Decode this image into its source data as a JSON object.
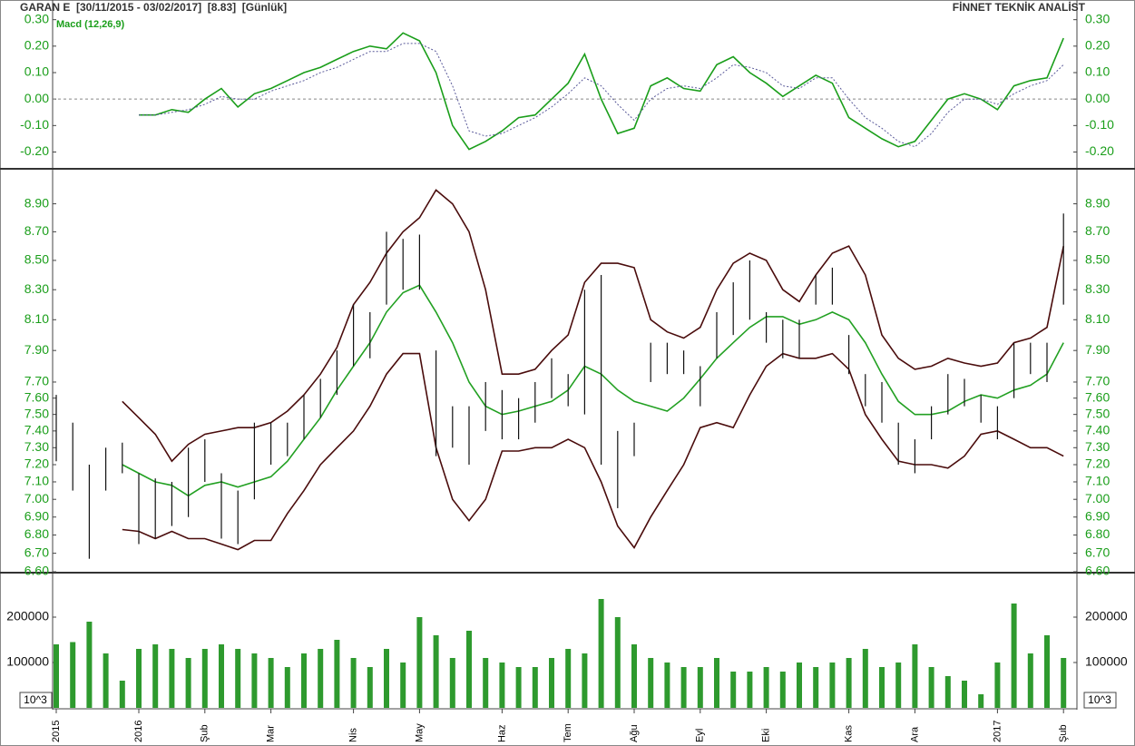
{
  "header": {
    "title": "GARAN E  [30/11/2015 - 03/02/2017]  [8.83]  [Günlük]",
    "brand": "FİNNET TEKNİK ANALİST"
  },
  "chart_data": [
    {
      "type": "line",
      "legend": "Macd (12,26,9)",
      "ylim": [
        -0.26,
        0.34
      ],
      "tick_color": "#1a9e1a",
      "yticks": [
        {
          "value": 0.3,
          "label": "0.30"
        },
        {
          "value": 0.2,
          "label": "0.20"
        },
        {
          "value": 0.1,
          "label": "0.10"
        },
        {
          "value": 0,
          "label": "0.00"
        },
        {
          "value": -0.1,
          "label": "-0.10"
        },
        {
          "value": -0.2,
          "label": "-0.20"
        }
      ],
      "series": [
        {
          "color": "#1a9e1a",
          "dash": false,
          "values": [
            null,
            null,
            null,
            null,
            null,
            -0.06,
            -0.06,
            -0.04,
            -0.05,
            0.0,
            0.04,
            -0.03,
            0.02,
            0.04,
            0.07,
            0.1,
            0.12,
            0.15,
            0.18,
            0.2,
            0.19,
            0.25,
            0.22,
            0.1,
            -0.1,
            -0.19,
            -0.16,
            -0.12,
            -0.07,
            -0.06,
            0.0,
            0.06,
            0.17,
            0.0,
            -0.13,
            -0.11,
            0.05,
            0.08,
            0.04,
            0.03,
            0.13,
            0.16,
            0.1,
            0.06,
            0.01,
            0.05,
            0.09,
            0.06,
            -0.07,
            -0.11,
            -0.15,
            -0.18,
            -0.16,
            -0.08,
            0.0,
            0.02,
            0.0,
            -0.04,
            0.05,
            0.07,
            0.08,
            0.23
          ]
        },
        {
          "color": "#5a5a9a",
          "dash": true,
          "values": [
            null,
            null,
            null,
            null,
            null,
            -0.06,
            -0.06,
            -0.05,
            -0.04,
            -0.02,
            0.01,
            0.0,
            0.0,
            0.03,
            0.05,
            0.07,
            0.1,
            0.12,
            0.15,
            0.18,
            0.18,
            0.21,
            0.21,
            0.18,
            0.05,
            -0.12,
            -0.14,
            -0.13,
            -0.1,
            -0.07,
            -0.03,
            0.02,
            0.08,
            0.05,
            -0.02,
            -0.08,
            0.0,
            0.04,
            0.05,
            0.04,
            0.08,
            0.13,
            0.12,
            0.1,
            0.05,
            0.04,
            0.08,
            0.08,
            0.0,
            -0.07,
            -0.11,
            -0.16,
            -0.18,
            -0.13,
            -0.05,
            0.0,
            0.0,
            -0.02,
            0.02,
            0.05,
            0.07,
            0.13
          ]
        }
      ]
    },
    {
      "type": "price",
      "log": true,
      "ylim": [
        6.6,
        9.15
      ],
      "tick_color": "#1a9e1a",
      "bar_color": "#111111",
      "yticks": [
        {
          "value": 8.9,
          "label": "8.90"
        },
        {
          "value": 8.7,
          "label": "8.70"
        },
        {
          "value": 8.5,
          "label": "8.50"
        },
        {
          "value": 8.3,
          "label": "8.30"
        },
        {
          "value": 8.1,
          "label": "8.10"
        },
        {
          "value": 7.9,
          "label": "7.90"
        },
        {
          "value": 7.7,
          "label": "7.70"
        },
        {
          "value": 7.6,
          "label": "7.60"
        },
        {
          "value": 7.5,
          "label": "7.50"
        },
        {
          "value": 7.4,
          "label": "7.40"
        },
        {
          "value": 7.3,
          "label": "7.30"
        },
        {
          "value": 7.2,
          "label": "7.20"
        },
        {
          "value": 7.1,
          "label": "7.10"
        },
        {
          "value": 7.0,
          "label": "7.00"
        },
        {
          "value": 6.9,
          "label": "6.90"
        },
        {
          "value": 6.8,
          "label": "6.80"
        },
        {
          "value": 6.7,
          "label": "6.70"
        },
        {
          "value": 6.6,
          "label": "6.60"
        }
      ],
      "high": [
        7.62,
        7.45,
        7.2,
        7.3,
        7.33,
        7.15,
        7.12,
        7.1,
        7.3,
        7.35,
        7.15,
        7.05,
        7.45,
        7.45,
        7.45,
        7.62,
        7.72,
        7.9,
        8.2,
        8.15,
        8.7,
        8.65,
        8.68,
        7.9,
        7.55,
        7.55,
        7.7,
        7.65,
        7.6,
        7.7,
        7.85,
        7.75,
        8.3,
        8.4,
        7.4,
        7.45,
        7.95,
        7.95,
        7.9,
        7.8,
        8.15,
        8.35,
        8.5,
        8.15,
        8.1,
        8.1,
        8.4,
        8.45,
        8.0,
        7.75,
        7.7,
        7.45,
        7.35,
        7.55,
        7.75,
        7.72,
        7.62,
        7.55,
        7.95,
        7.95,
        7.95,
        8.83
      ],
      "low": [
        7.22,
        7.05,
        6.67,
        7.05,
        7.15,
        6.75,
        6.78,
        6.85,
        6.9,
        7.1,
        6.78,
        6.75,
        7.0,
        7.2,
        7.25,
        7.35,
        7.48,
        7.62,
        7.8,
        7.85,
        8.2,
        8.3,
        8.3,
        7.25,
        7.3,
        7.2,
        7.4,
        7.35,
        7.35,
        7.45,
        7.6,
        7.55,
        7.5,
        7.2,
        6.95,
        7.25,
        7.7,
        7.75,
        7.75,
        7.55,
        7.85,
        8.0,
        8.1,
        7.95,
        7.85,
        7.85,
        8.2,
        8.2,
        7.75,
        7.55,
        7.45,
        7.2,
        7.15,
        7.35,
        7.5,
        7.55,
        7.45,
        7.35,
        7.6,
        7.75,
        7.7,
        8.2
      ],
      "series": [
        {
          "color": "#4a0c0c",
          "values": [
            null,
            null,
            null,
            null,
            7.58,
            7.48,
            7.38,
            7.22,
            7.32,
            7.38,
            7.4,
            7.42,
            7.42,
            7.45,
            7.52,
            7.62,
            7.75,
            7.92,
            8.2,
            8.35,
            8.55,
            8.7,
            8.8,
            9.0,
            8.9,
            8.7,
            8.3,
            7.75,
            7.75,
            7.78,
            7.9,
            8.0,
            8.35,
            8.48,
            8.48,
            8.45,
            8.1,
            8.02,
            7.98,
            8.05,
            8.3,
            8.48,
            8.55,
            8.5,
            8.3,
            8.22,
            8.4,
            8.55,
            8.6,
            8.4,
            8.0,
            7.85,
            7.78,
            7.8,
            7.85,
            7.82,
            7.8,
            7.82,
            7.95,
            7.98,
            8.05,
            8.6
          ]
        },
        {
          "color": "#22a022",
          "values": [
            null,
            null,
            null,
            null,
            7.2,
            7.15,
            7.1,
            7.08,
            7.02,
            7.08,
            7.1,
            7.07,
            7.1,
            7.13,
            7.22,
            7.35,
            7.48,
            7.65,
            7.8,
            7.95,
            8.15,
            8.28,
            8.33,
            8.15,
            7.95,
            7.7,
            7.55,
            7.5,
            7.52,
            7.55,
            7.58,
            7.65,
            7.8,
            7.75,
            7.65,
            7.58,
            7.55,
            7.52,
            7.6,
            7.72,
            7.85,
            7.95,
            8.05,
            8.12,
            8.12,
            8.07,
            8.1,
            8.15,
            8.1,
            7.95,
            7.75,
            7.58,
            7.5,
            7.5,
            7.52,
            7.58,
            7.62,
            7.6,
            7.65,
            7.68,
            7.75,
            7.95
          ]
        },
        {
          "color": "#4a0c0c",
          "values": [
            null,
            null,
            null,
            null,
            6.83,
            6.82,
            6.78,
            6.82,
            6.78,
            6.78,
            6.75,
            6.72,
            6.77,
            6.77,
            6.92,
            7.05,
            7.2,
            7.3,
            7.4,
            7.55,
            7.75,
            7.88,
            7.88,
            7.3,
            7.0,
            6.88,
            7.0,
            7.28,
            7.28,
            7.3,
            7.3,
            7.35,
            7.3,
            7.1,
            6.85,
            6.73,
            6.9,
            7.05,
            7.2,
            7.42,
            7.45,
            7.42,
            7.62,
            7.8,
            7.88,
            7.85,
            7.85,
            7.88,
            7.78,
            7.5,
            7.35,
            7.22,
            7.2,
            7.2,
            7.18,
            7.25,
            7.38,
            7.4,
            7.35,
            7.3,
            7.3,
            7.25
          ]
        }
      ]
    },
    {
      "type": "bar",
      "ylim": [
        0,
        296000
      ],
      "tick_color": "#111111",
      "color": "#2e9a2e",
      "unit_label": "10^3",
      "yticks": [
        200000,
        100000
      ],
      "categories": [
        "2015",
        null,
        null,
        null,
        null,
        "2016",
        null,
        null,
        null,
        "Şub",
        null,
        null,
        null,
        "Mar",
        null,
        null,
        null,
        null,
        "Nis",
        null,
        null,
        null,
        "May",
        null,
        null,
        null,
        null,
        "Haz",
        null,
        null,
        null,
        "Tem",
        null,
        null,
        null,
        "Ağu",
        null,
        null,
        null,
        "Eyl",
        null,
        null,
        null,
        "Eki",
        null,
        null,
        null,
        null,
        "Kas",
        null,
        null,
        null,
        "Ara",
        null,
        null,
        null,
        null,
        "2017",
        null,
        null,
        null,
        "Şub"
      ],
      "values": [
        140000,
        145000,
        190000,
        120000,
        60000,
        130000,
        140000,
        130000,
        110000,
        130000,
        140000,
        130000,
        120000,
        110000,
        90000,
        120000,
        130000,
        150000,
        110000,
        90000,
        130000,
        100000,
        200000,
        160000,
        110000,
        170000,
        110000,
        100000,
        90000,
        90000,
        110000,
        130000,
        120000,
        240000,
        200000,
        140000,
        110000,
        100000,
        90000,
        90000,
        110000,
        80000,
        80000,
        90000,
        80000,
        100000,
        90000,
        100000,
        110000,
        130000,
        90000,
        100000,
        140000,
        90000,
        70000,
        60000,
        30000,
        100000,
        230000,
        120000,
        160000,
        110000
      ]
    }
  ]
}
